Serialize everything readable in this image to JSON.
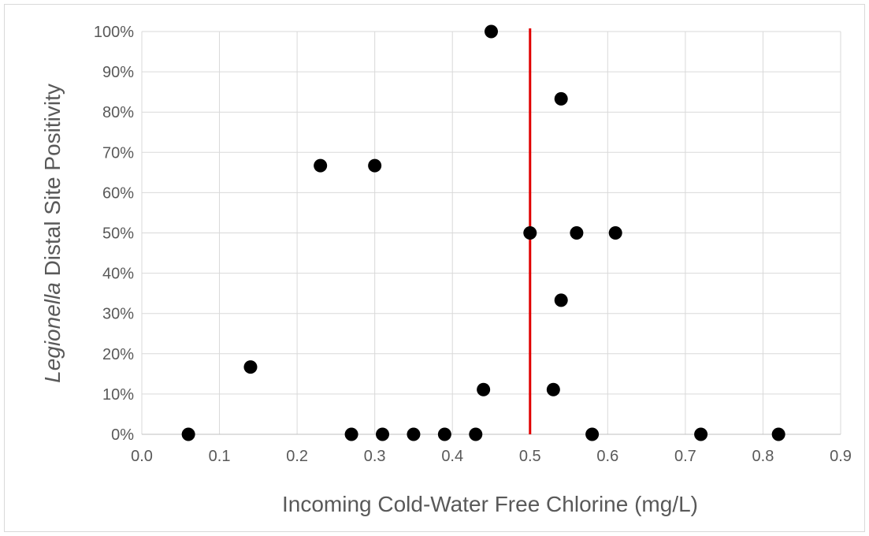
{
  "chart_data": {
    "type": "scatter",
    "xlabel": "Incoming Cold-Water Free Chlorine (mg/L)",
    "ylabel_italic": "Legionella",
    "ylabel_rest": " Distal Site Positivity",
    "xlim": [
      0,
      0.9
    ],
    "ylim": [
      0,
      100
    ],
    "x_ticks": [
      "0.0",
      "0.1",
      "0.2",
      "0.3",
      "0.4",
      "0.5",
      "0.6",
      "0.7",
      "0.8",
      "0.9"
    ],
    "y_ticks": [
      "0%",
      "10%",
      "20%",
      "30%",
      "40%",
      "50%",
      "60%",
      "70%",
      "80%",
      "90%",
      "100%"
    ],
    "grid": true,
    "reference_line": {
      "x": 0.5,
      "color": "#e00000"
    },
    "marker_color": "#000000",
    "points": [
      {
        "x": 0.06,
        "y": 0
      },
      {
        "x": 0.14,
        "y": 16.7
      },
      {
        "x": 0.23,
        "y": 66.7
      },
      {
        "x": 0.27,
        "y": 0
      },
      {
        "x": 0.3,
        "y": 66.7
      },
      {
        "x": 0.31,
        "y": 0
      },
      {
        "x": 0.35,
        "y": 0
      },
      {
        "x": 0.39,
        "y": 0
      },
      {
        "x": 0.43,
        "y": 0
      },
      {
        "x": 0.44,
        "y": 11.1
      },
      {
        "x": 0.45,
        "y": 100
      },
      {
        "x": 0.5,
        "y": 50
      },
      {
        "x": 0.53,
        "y": 11.1
      },
      {
        "x": 0.54,
        "y": 83.3
      },
      {
        "x": 0.54,
        "y": 33.3
      },
      {
        "x": 0.56,
        "y": 50
      },
      {
        "x": 0.58,
        "y": 0
      },
      {
        "x": 0.61,
        "y": 50
      },
      {
        "x": 0.72,
        "y": 0
      },
      {
        "x": 0.82,
        "y": 0
      }
    ]
  }
}
